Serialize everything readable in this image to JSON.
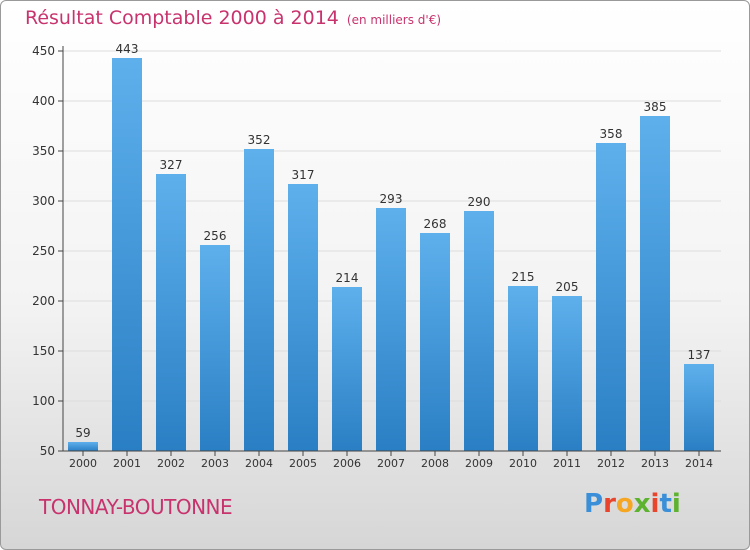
{
  "header": {
    "title": "Résultat Comptable 2000 à 2014",
    "subtitle": "(en milliers d'€)"
  },
  "footer": {
    "commune": "TONNAY-BOUTONNE",
    "logo_letters": [
      "P",
      "r",
      "o",
      "x",
      "i",
      "t",
      "i"
    ],
    "logo_colors": [
      "#3a8fd8",
      "#e8452c",
      "#f5a623",
      "#5db330",
      "#e8452c",
      "#3a8fd8",
      "#5db330"
    ]
  },
  "colors": {
    "title": "#c8336e",
    "bar_top": "#5eb0ec",
    "bar_bottom": "#2a7fc4",
    "grid": "#dddddd",
    "axis": "#444444"
  },
  "chart_data": {
    "type": "bar",
    "title": "Résultat Comptable 2000 à 2014",
    "xlabel": "",
    "ylabel": "",
    "ylim": [
      50,
      450
    ],
    "yticks": [
      50,
      100,
      150,
      200,
      250,
      300,
      350,
      400,
      450
    ],
    "grid": true,
    "categories": [
      "2000",
      "2001",
      "2002",
      "2003",
      "2004",
      "2005",
      "2006",
      "2007",
      "2008",
      "2009",
      "2010",
      "2011",
      "2012",
      "2013",
      "2014"
    ],
    "values": [
      59,
      443,
      327,
      256,
      352,
      317,
      214,
      293,
      268,
      290,
      215,
      205,
      358,
      385,
      137
    ]
  }
}
